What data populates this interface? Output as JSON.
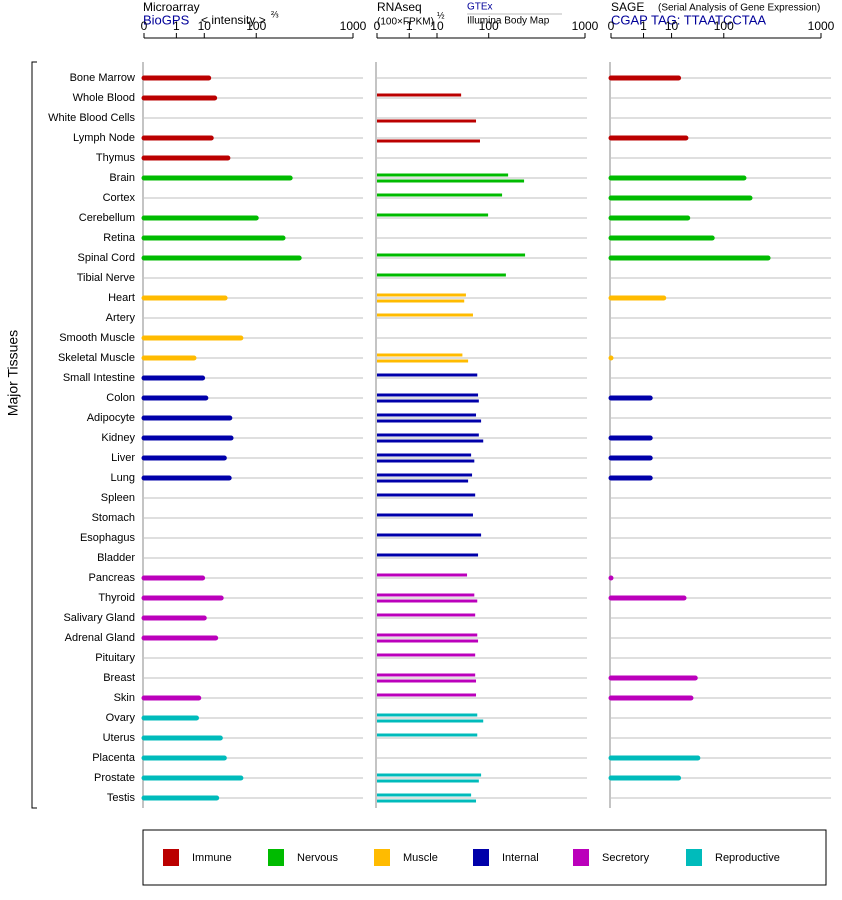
{
  "chart_data": {
    "type": "bar",
    "ylabel": "Major Tissues",
    "groups": [
      {
        "name": "Immune",
        "color": "#bb0000",
        "categories": [
          "Bone Marrow",
          "Whole Blood",
          "White Blood Cells",
          "Lymph Node",
          "Thymus"
        ]
      },
      {
        "name": "Nervous",
        "color": "#00bb00",
        "categories": [
          "Brain",
          "Cortex",
          "Cerebellum",
          "Retina",
          "Spinal Cord",
          "Tibial Nerve"
        ]
      },
      {
        "name": "Muscle",
        "color": "#ffbb00",
        "categories": [
          "Heart",
          "Artery",
          "Smooth Muscle",
          "Skeletal Muscle"
        ]
      },
      {
        "name": "Internal",
        "color": "#0000aa",
        "categories": [
          "Small Intestine",
          "Colon",
          "Adipocyte",
          "Kidney",
          "Liver",
          "Lung",
          "Spleen",
          "Stomach",
          "Esophagus",
          "Bladder"
        ]
      },
      {
        "name": "Secretory",
        "color": "#bb00bb",
        "categories": [
          "Pancreas",
          "Thyroid",
          "Salivary Gland",
          "Adrenal Gland",
          "Pituitary",
          "Breast",
          "Skin"
        ]
      },
      {
        "name": "Reproductive",
        "color": "#00bbbb",
        "categories": [
          "Ovary",
          "Uterus",
          "Placenta",
          "Prostate",
          "Testis"
        ]
      }
    ],
    "panels": [
      {
        "title": "Microarray",
        "scale_label": "< intensity >",
        "scale_power": "⅔",
        "xlim": [
          0,
          1000
        ],
        "xticks": [
          0,
          1,
          10,
          100,
          1000
        ],
        "series": [
          {
            "name": "BioGPS",
            "values": [
              13,
              18,
              null,
              15,
              34,
              266,
              null,
              100,
              221,
              332,
              null,
              30,
              null,
              58,
              5,
              9,
              11,
              37,
              39,
              29,
              36,
              null,
              null,
              null,
              null,
              9,
              25,
              10,
              19,
              null,
              null,
              7,
              6,
              24,
              29,
              58,
              20
            ]
          }
        ]
      },
      {
        "title": "RNAseq",
        "scale_label": "(100×FPKM)",
        "scale_power": "½",
        "xlim": [
          0,
          1000
        ],
        "xticks": [
          0,
          1,
          10,
          100,
          1000
        ],
        "series": [
          {
            "name": "GTEx",
            "values": [
              null,
              35,
              null,
              null,
              null,
              181,
              152,
              98,
              null,
              284,
              170,
              43,
              57,
              null,
              37,
              67,
              69,
              64,
              71,
              53,
              55,
              62,
              57,
              77,
              69,
              45,
              60,
              62,
              67,
              62,
              62,
              64,
              67,
              67,
              null,
              77,
              53
            ]
          },
          {
            "name": "Illumina Body Map",
            "values": [
              null,
              null,
              64,
              74,
              null,
              277,
              null,
              null,
              null,
              null,
              null,
              40,
              null,
              null,
              47,
              null,
              71,
              77,
              83,
              60,
              47,
              null,
              null,
              null,
              null,
              null,
              67,
              null,
              69,
              null,
              64,
              null,
              83,
              null,
              null,
              71,
              64
            ]
          }
        ]
      },
      {
        "title": "SAGE",
        "scale_label": "(Serial Analysis of Gene Expression)",
        "xlim": [
          0,
          1000
        ],
        "xticks": [
          0,
          1,
          10,
          100,
          1000
        ],
        "series": [
          {
            "name": "CGAP TAG: TTAATCCTAA",
            "values": [
              15,
              null,
              null,
              22,
              null,
              184,
              217,
              24,
              67,
              341,
              null,
              6,
              null,
              null,
              0,
              null,
              2,
              null,
              2,
              2,
              2,
              null,
              null,
              null,
              null,
              0,
              20,
              null,
              null,
              null,
              34,
              28,
              null,
              null,
              38,
              15,
              null
            ]
          }
        ]
      }
    ]
  }
}
